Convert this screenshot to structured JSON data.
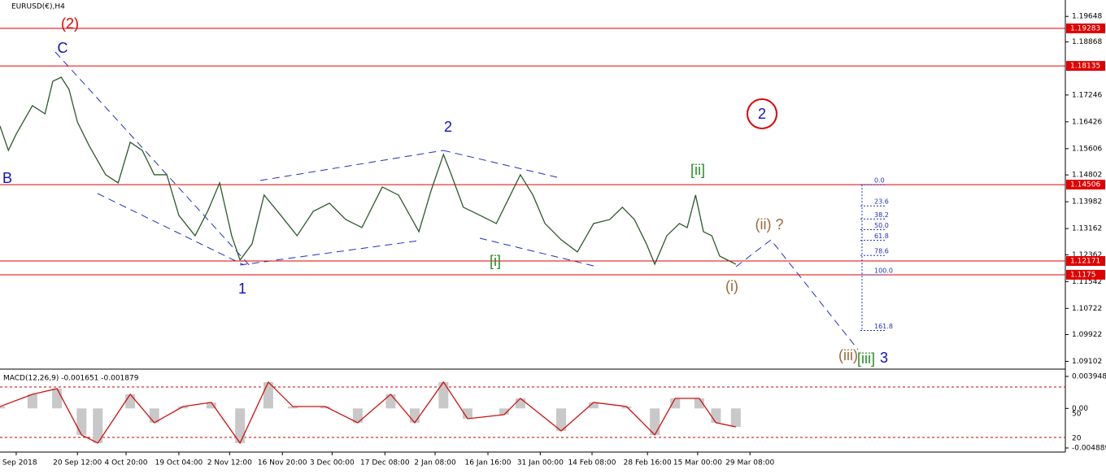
{
  "chart_data": {
    "type": "line",
    "title": "EURUSD(€),H4",
    "x": [
      0,
      0.16,
      0.31,
      0.62,
      0.86,
      1.01,
      1.17,
      1.32,
      1.48,
      1.71,
      2.02,
      2.26,
      2.49,
      2.72,
      2.95,
      3.19,
      3.42,
      3.73,
      3.97,
      4.2,
      4.43,
      4.59,
      4.82,
      5.05,
      5.37,
      5.68,
      5.99,
      6.3,
      6.61,
      6.92,
      7.31,
      7.62,
      8.01,
      8.24,
      8.48,
      8.63,
      8.86,
      9.18,
      9.49,
      9.72,
      9.95,
      10.19,
      10.42,
      10.73,
      11.04,
      11.35,
      11.66,
      11.9,
      12.13,
      12.36,
      12.52,
      12.75,
      12.99,
      13.14,
      13.3,
      13.45,
      13.61,
      13.76,
      14.07
    ],
    "series": [
      {
        "color": "#2a5a2a",
        "values": [
          1.16298,
          1.15553,
          1.1605,
          1.1692,
          1.1667,
          1.17665,
          1.17789,
          1.17416,
          1.16422,
          1.15677,
          1.14807,
          1.14559,
          1.15801,
          1.15553,
          1.14807,
          1.14807,
          1.13564,
          1.12943,
          1.13689,
          1.14559,
          1.12943,
          1.12198,
          1.12695,
          1.14186,
          1.13564,
          1.12943,
          1.13689,
          1.13937,
          1.1344,
          1.13192,
          1.14434,
          1.14186,
          1.13068,
          1.1431,
          1.15428,
          1.14807,
          1.13813,
          1.13564,
          1.13316,
          1.14062,
          1.14807,
          1.14186,
          1.13316,
          1.12819,
          1.12446,
          1.13316,
          1.1344,
          1.13813,
          1.1344,
          1.12695,
          1.12074,
          1.12943,
          1.13316,
          1.13192,
          1.14186,
          1.13068,
          1.12943,
          1.12322,
          1.12074
        ]
      }
    ],
    "xlim": [
      0,
      20.37
    ],
    "xticks": [
      {
        "value": 0.31,
        "label": "6 Sep 2018"
      },
      {
        "value": 1.48,
        "label": "20 Sep 12:00"
      },
      {
        "value": 2.41,
        "label": "4 Oct 20:00"
      },
      {
        "value": 3.42,
        "label": "19 Oct 04:00"
      },
      {
        "value": 4.39,
        "label": "2 Nov 12:00"
      },
      {
        "value": 5.4,
        "label": "16 Nov 20:00"
      },
      {
        "value": 6.35,
        "label": "3 Dec 00:00"
      },
      {
        "value": 7.36,
        "label": "17 Dec 08:00"
      },
      {
        "value": 8.32,
        "label": "2 Jan 08:00"
      },
      {
        "value": 9.33,
        "label": "16 Jan 16:00"
      },
      {
        "value": 10.33,
        "label": "31 Jan 00:00"
      },
      {
        "value": 11.32,
        "label": "14 Feb 08:00"
      },
      {
        "value": 12.38,
        "label": "28 Feb 16:00"
      },
      {
        "value": 13.34,
        "label": "15 Mar 00:00"
      },
      {
        "value": 14.34,
        "label": "29 Mar 08:00"
      }
    ],
    "ylim": [
      1.0889,
      1.2015
    ],
    "yticks": [
      1.19648,
      1.18868,
      1.17246,
      1.16426,
      1.15606,
      1.14802,
      1.13982,
      1.13162,
      1.12362,
      1.11542,
      1.10722,
      1.09922,
      1.09102
    ],
    "levels": [
      1.19283,
      1.18135,
      1.14506,
      1.12171,
      1.1175
    ],
    "level_color": "#e00000",
    "fib": [
      {
        "value": 0,
        "label": "0.0"
      },
      {
        "value": 23.6,
        "label": "23.6"
      },
      {
        "value": 38.2,
        "label": "38.2"
      },
      {
        "value": 50,
        "label": "50.0"
      },
      {
        "value": 61.8,
        "label": "61.8"
      },
      {
        "value": 78.6,
        "label": "78.6"
      },
      {
        "value": 100,
        "label": "100.0"
      },
      {
        "value": 161.8,
        "label": "161.8"
      }
    ],
    "annotations": [
      {
        "text": "(2)",
        "color": "#e00000"
      },
      {
        "text": "C",
        "color": "#1010c0"
      },
      {
        "text": "B",
        "color": "#1010c0"
      },
      {
        "text": "1",
        "color": "#1010c0"
      },
      {
        "text": "2",
        "color": "#1010c0"
      },
      {
        "text": "[i]",
        "color": "#2a8a2a"
      },
      {
        "text": "[ii]",
        "color": "#2a8a2a"
      },
      {
        "text": "(i)",
        "color": "#9a6a3a"
      },
      {
        "text": "(ii) ?",
        "color": "#9a6a3a"
      },
      {
        "text": "(iii)",
        "color": "#9a6a3a"
      },
      {
        "text": "[iii]",
        "color": "#2a8a2a"
      },
      {
        "text": "3",
        "color": "#1010c0"
      },
      {
        "text": "2",
        "color": "#1010c0"
      }
    ],
    "macd": {
      "label": "MACD(12,26,9) -0.001651 -0.001879",
      "color": "#d01010",
      "x": [
        0,
        0.62,
        1.09,
        1.56,
        1.87,
        2.49,
        2.95,
        3.5,
        4.04,
        4.59,
        5.13,
        5.6,
        6.22,
        6.84,
        7.47,
        7.93,
        8.48,
        8.94,
        9.64,
        9.95,
        10.73,
        11.35,
        11.98,
        12.52,
        12.91,
        13.37,
        13.69,
        14.07
      ],
      "values": [
        0.00023,
        0.00174,
        0.00244,
        -0.00328,
        -0.00428,
        0.00174,
        -0.00177,
        0.00023,
        0.00074,
        -0.00428,
        0.00325,
        0.00023,
        0.00023,
        -0.00177,
        0.00174,
        -0.00177,
        0.00325,
        -0.00127,
        -0.00077,
        0.00124,
        -0.00278,
        0.00074,
        0.00023,
        -0.00328,
        0.00124,
        0.00124,
        -0.00177,
        -0.00228
      ],
      "ylim": [
        -0.004889,
        0.003948
      ],
      "yticks": [
        0.003948,
        {
          "value": 0,
          "label": "0.00"
        },
        -0.004889
      ],
      "side_labels": [
        "50",
        "20"
      ]
    }
  }
}
